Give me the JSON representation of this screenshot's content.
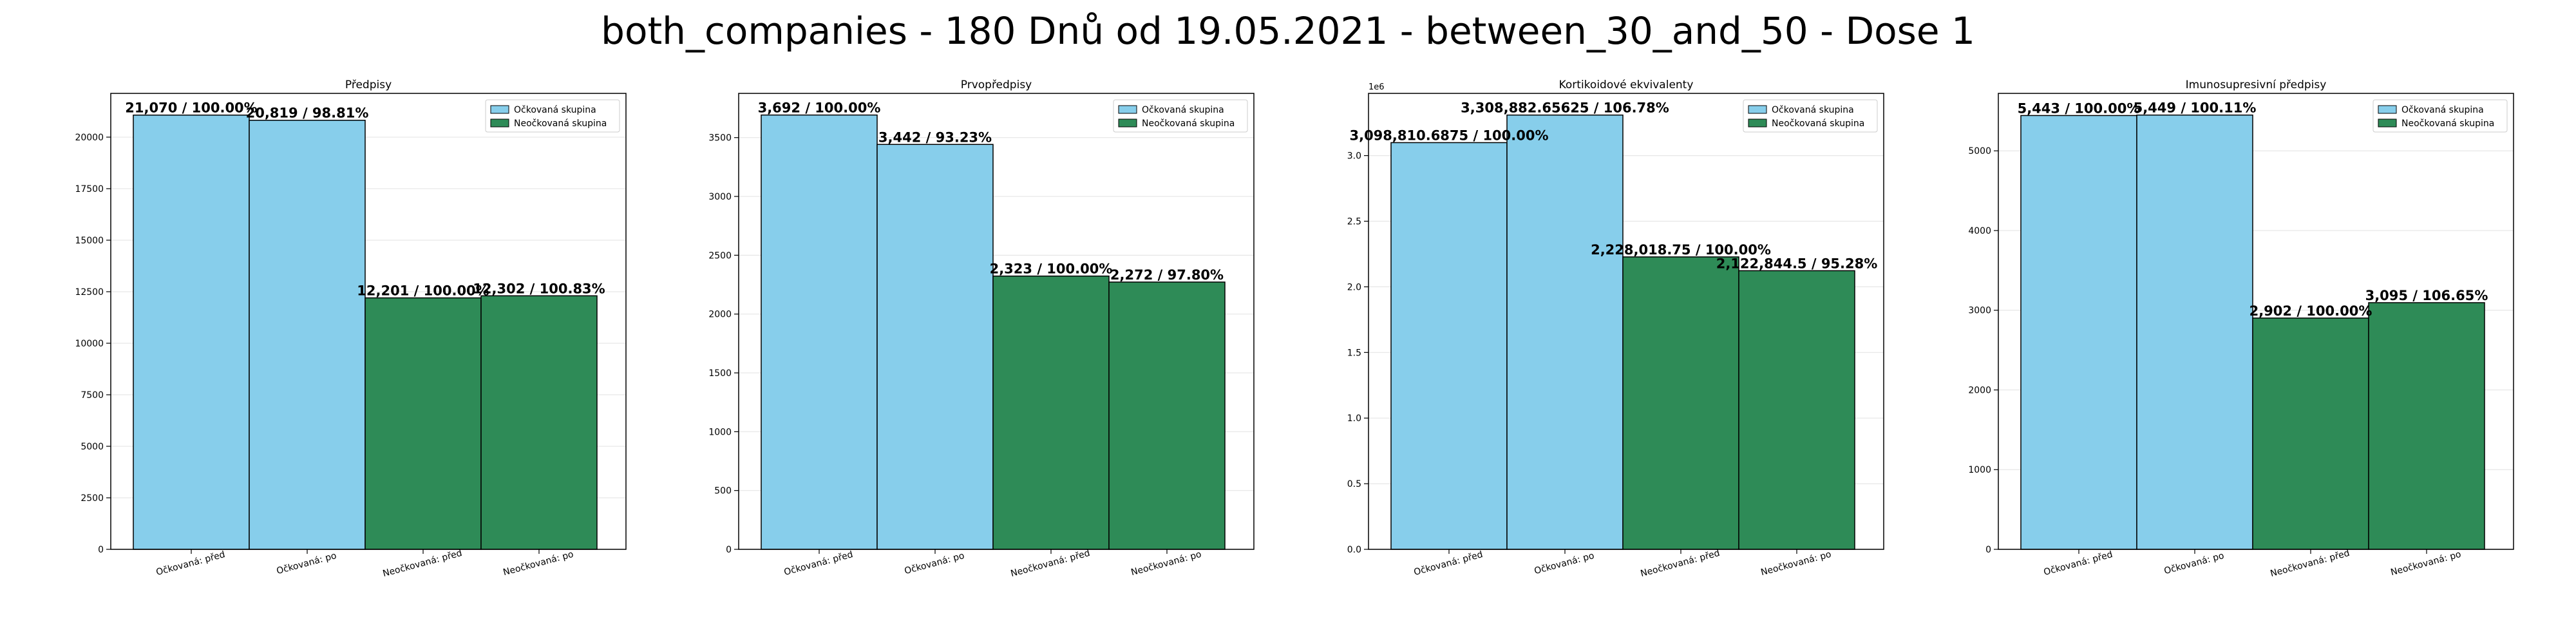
{
  "page_title": "both_companies - 180 Dnů od 19.05.2021 - between_30_and_50 - Dose 1",
  "colors": {
    "vaccinated": "#87CEEB",
    "unvaccinated": "#2E8B57"
  },
  "chart_data": [
    {
      "type": "bar",
      "title": "Předpisy",
      "categories": [
        "Očkovaná: před",
        "Očkovaná: po",
        "Neočkovaná: před",
        "Neočkovaná: po"
      ],
      "values": [
        21070,
        20819,
        12201,
        12302
      ],
      "value_labels": [
        "21,070 / 100.00%",
        "20,819 / 98.81%",
        "12,201 / 100.00%",
        "12,302 / 100.83%"
      ],
      "bar_series": [
        "vaccinated",
        "vaccinated",
        "unvaccinated",
        "unvaccinated"
      ],
      "ylim": [
        0,
        22123.5
      ],
      "yticks": [
        0,
        2500,
        5000,
        7500,
        10000,
        12500,
        15000,
        17500,
        20000
      ],
      "ytick_labels": [
        "0",
        "2500",
        "5000",
        "7500",
        "10000",
        "12500",
        "15000",
        "17500",
        "20000"
      ],
      "ylabel_exponent": "",
      "legend": [
        "Očkovaná skupina",
        "Neočkovaná skupina"
      ],
      "legend_position": "top-right",
      "grid": "y"
    },
    {
      "type": "bar",
      "title": "Prvopředpisy",
      "categories": [
        "Očkovaná: před",
        "Očkovaná: po",
        "Neočkovaná: před",
        "Neočkovaná: po"
      ],
      "values": [
        3692,
        3442,
        2323,
        2272
      ],
      "value_labels": [
        "3,692 / 100.00%",
        "3,442 / 93.23%",
        "2,323 / 100.00%",
        "2,272 / 97.80%"
      ],
      "bar_series": [
        "vaccinated",
        "vaccinated",
        "unvaccinated",
        "unvaccinated"
      ],
      "ylim": [
        0,
        3876
      ],
      "yticks": [
        0,
        500,
        1000,
        1500,
        2000,
        2500,
        3000,
        3500
      ],
      "ytick_labels": [
        "0",
        "500",
        "1000",
        "1500",
        "2000",
        "2500",
        "3000",
        "3500"
      ],
      "ylabel_exponent": "",
      "legend": [
        "Očkovaná skupina",
        "Neočkovaná skupina"
      ],
      "legend_position": "top-right",
      "grid": "y"
    },
    {
      "type": "bar",
      "title": "Kortikoidové ekvivalenty",
      "categories": [
        "Očkovaná: před",
        "Očkovaná: po",
        "Neočkovaná: před",
        "Neočkovaná: po"
      ],
      "values": [
        3098810.6875,
        3308882.65625,
        2228018.75,
        2122844.5
      ],
      "value_labels": [
        "3,098,810.6875 / 100.00%",
        "3,308,882.65625 / 106.78%",
        "2,228,018.75 / 100.00%",
        "2,122,844.5 / 95.28%"
      ],
      "bar_series": [
        "vaccinated",
        "vaccinated",
        "unvaccinated",
        "unvaccinated"
      ],
      "ylim": [
        0,
        3474000
      ],
      "yticks": [
        0,
        500000,
        1000000,
        1500000,
        2000000,
        2500000,
        3000000
      ],
      "ytick_labels": [
        "0.0",
        "0.5",
        "1.0",
        "1.5",
        "2.0",
        "2.5",
        "3.0"
      ],
      "ylabel_exponent": "1e6",
      "legend": [
        "Očkovaná skupina",
        "Neočkovaná skupina"
      ],
      "legend_position": "top-right",
      "grid": "y"
    },
    {
      "type": "bar",
      "title": "Imunosupresivní předpisy",
      "categories": [
        "Očkovaná: před",
        "Očkovaná: po",
        "Neočkovaná: před",
        "Neočkovaná: po"
      ],
      "values": [
        5443,
        5449,
        2902,
        3095
      ],
      "value_labels": [
        "5,443 / 100.00%",
        "5,449 / 100.11%",
        "2,902 / 100.00%",
        "3,095 / 106.65%"
      ],
      "bar_series": [
        "vaccinated",
        "vaccinated",
        "unvaccinated",
        "unvaccinated"
      ],
      "ylim": [
        0,
        5721
      ],
      "yticks": [
        0,
        1000,
        2000,
        3000,
        4000,
        5000
      ],
      "ytick_labels": [
        "0",
        "1000",
        "2000",
        "3000",
        "4000",
        "5000"
      ],
      "ylabel_exponent": "",
      "legend": [
        "Očkovaná skupina",
        "Neočkovaná skupina"
      ],
      "legend_position": "top-right",
      "grid": "y"
    }
  ]
}
